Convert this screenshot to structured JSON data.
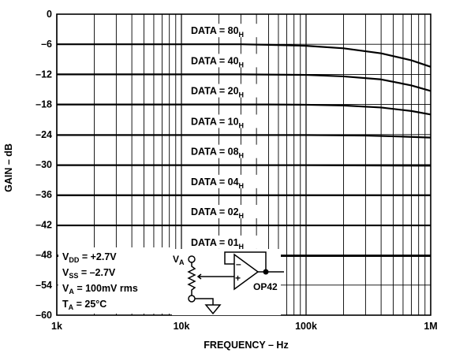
{
  "chart_data": {
    "type": "line",
    "title": "",
    "xlabel": "FREQUENCY – Hz",
    "ylabel": "GAIN – dB",
    "x_scale": "log",
    "xlim": [
      1000,
      1000000
    ],
    "ylim": [
      -60,
      0
    ],
    "grid": true,
    "x_ticks": [
      {
        "value": 1000,
        "label": "1k"
      },
      {
        "value": 10000,
        "label": "10k"
      },
      {
        "value": 100000,
        "label": "100k"
      },
      {
        "value": 1000000,
        "label": "1M"
      }
    ],
    "y_ticks": [
      {
        "value": 0,
        "label": "0"
      },
      {
        "value": -6,
        "label": "–6"
      },
      {
        "value": -12,
        "label": "–12"
      },
      {
        "value": -18,
        "label": "–18"
      },
      {
        "value": -24,
        "label": "–24"
      },
      {
        "value": -30,
        "label": "–30"
      },
      {
        "value": -36,
        "label": "–36"
      },
      {
        "value": -42,
        "label": "–42"
      },
      {
        "value": -48,
        "label": "–48"
      },
      {
        "value": -54,
        "label": "–54"
      },
      {
        "value": -60,
        "label": "–60"
      }
    ],
    "series_labels": [
      {
        "main": "DATA = 80",
        "sub": "H"
      },
      {
        "main": "DATA = 40",
        "sub": "H"
      },
      {
        "main": "DATA = 20",
        "sub": "H"
      },
      {
        "main": "DATA = 10",
        "sub": "H"
      },
      {
        "main": "DATA = 08",
        "sub": "H"
      },
      {
        "main": "DATA = 04",
        "sub": "H"
      },
      {
        "main": "DATA = 02",
        "sub": "H"
      },
      {
        "main": "DATA = 01",
        "sub": "H"
      }
    ],
    "series": [
      {
        "name": "DATA = 80H",
        "x": [
          1000,
          10000,
          30000,
          50000,
          100000,
          200000,
          400000,
          700000,
          1000000
        ],
        "y": [
          -6.0,
          -6.0,
          -6.0,
          -6.1,
          -6.3,
          -6.8,
          -7.8,
          -9.2,
          -10.5
        ]
      },
      {
        "name": "DATA = 40H",
        "x": [
          1000,
          10000,
          30000,
          100000,
          200000,
          400000,
          700000,
          1000000
        ],
        "y": [
          -12.0,
          -12.0,
          -12.0,
          -12.1,
          -12.4,
          -13.0,
          -14.2,
          -15.3
        ]
      },
      {
        "name": "DATA = 20H",
        "x": [
          1000,
          10000,
          50000,
          100000,
          200000,
          400000,
          700000,
          1000000
        ],
        "y": [
          -18.0,
          -18.0,
          -18.0,
          -18.05,
          -18.2,
          -18.6,
          -19.3,
          -20.0
        ]
      },
      {
        "name": "DATA = 10H",
        "x": [
          1000,
          10000,
          100000,
          300000,
          600000,
          1000000
        ],
        "y": [
          -24.1,
          -24.1,
          -24.1,
          -24.2,
          -24.4,
          -24.6
        ]
      },
      {
        "name": "DATA = 08H",
        "x": [
          1000,
          100000,
          1000000
        ],
        "y": [
          -30.1,
          -30.1,
          -30.2
        ]
      },
      {
        "name": "DATA = 04H",
        "x": [
          1000,
          100000,
          1000000
        ],
        "y": [
          -36.1,
          -36.1,
          -36.1
        ]
      },
      {
        "name": "DATA = 02H",
        "x": [
          1000,
          100000,
          1000000
        ],
        "y": [
          -42.1,
          -42.1,
          -42.1
        ]
      },
      {
        "name": "DATA = 01H",
        "x": [
          1000,
          100000,
          1000000
        ],
        "y": [
          -48.2,
          -48.2,
          -48.2
        ]
      }
    ],
    "conditions": [
      {
        "pre": "V",
        "sub": "DD",
        "post": " = +2.7V"
      },
      {
        "pre": "V",
        "sub": "SS",
        "post": " = –2.7V"
      },
      {
        "pre": "V",
        "sub": "A",
        "post": " = 100mV rms"
      },
      {
        "pre": "T",
        "sub": "A",
        "post": " = 25°C"
      }
    ],
    "circuit": {
      "input_label": "V",
      "input_sub": "A",
      "opamp_label": "OP42",
      "minus_sign": "–",
      "plus_sign": "+"
    }
  }
}
